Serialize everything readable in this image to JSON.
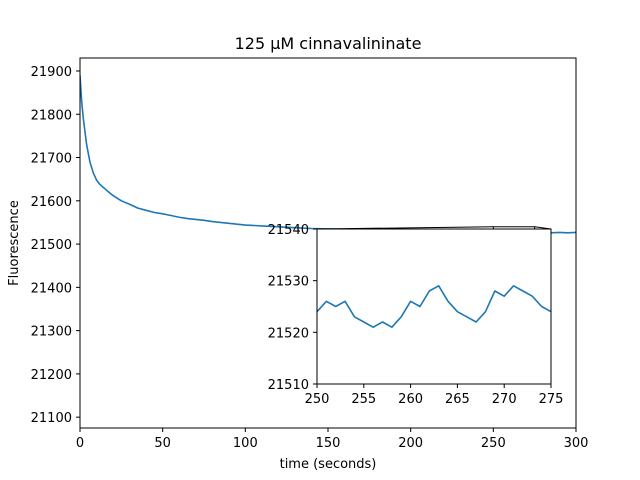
{
  "chart_data": [
    {
      "type": "line",
      "title": "125 µM cinnavalininate",
      "xlabel": "time (seconds)",
      "ylabel": "Fluorescence",
      "xlim": [
        0,
        300
      ],
      "ylim": [
        21075,
        21930
      ],
      "xticks": [
        0,
        50,
        100,
        150,
        200,
        250,
        300
      ],
      "yticks": [
        21100,
        21200,
        21300,
        21400,
        21500,
        21600,
        21700,
        21800,
        21900
      ],
      "grid": false,
      "legend": "none",
      "series": [
        {
          "color": "#1f77b4",
          "x": [
            0,
            1,
            2,
            3,
            4,
            5,
            6,
            8,
            10,
            12,
            15,
            18,
            20,
            25,
            30,
            35,
            40,
            45,
            50,
            55,
            60,
            65,
            70,
            75,
            80,
            85,
            90,
            95,
            100,
            110,
            120,
            130,
            140,
            150,
            160,
            170,
            180,
            190,
            200,
            210,
            220,
            230,
            240,
            250,
            255,
            260,
            265,
            270,
            275,
            280,
            285,
            290,
            295,
            300
          ],
          "y": [
            21890,
            21830,
            21790,
            21760,
            21730,
            21710,
            21690,
            21665,
            21648,
            21638,
            21628,
            21618,
            21612,
            21600,
            21592,
            21583,
            21578,
            21573,
            21570,
            21566,
            21562,
            21559,
            21557,
            21555,
            21552,
            21550,
            21548,
            21546,
            21544,
            21542,
            21540,
            21538,
            21536,
            21535,
            21534,
            21533,
            21532,
            21531,
            21530,
            21530,
            21529,
            21529,
            21528,
            21525,
            21522,
            21526,
            21524,
            21528,
            21526,
            21527,
            21526,
            21527,
            21526,
            21527
          ]
        }
      ]
    },
    {
      "type": "line",
      "title": "",
      "xlabel": "",
      "ylabel": "",
      "xlim": [
        250,
        275
      ],
      "ylim": [
        21510,
        21540
      ],
      "xticks": [
        250,
        255,
        260,
        265,
        270,
        275
      ],
      "yticks": [
        21510,
        21520,
        21530,
        21540
      ],
      "grid": false,
      "legend": "none",
      "series": [
        {
          "color": "#1f77b4",
          "x": [
            250,
            251,
            252,
            253,
            254,
            255,
            256,
            257,
            258,
            259,
            260,
            261,
            262,
            263,
            264,
            265,
            266,
            267,
            268,
            269,
            270,
            271,
            272,
            273,
            274,
            275
          ],
          "y": [
            21524,
            21526,
            21525,
            21526,
            21523,
            21522,
            21521,
            21522,
            21521,
            21523,
            21526,
            21525,
            21528,
            21529,
            21526,
            21524,
            21523,
            21522,
            21524,
            21528,
            21527,
            21529,
            21528,
            21527,
            21525,
            21524
          ]
        }
      ]
    }
  ]
}
